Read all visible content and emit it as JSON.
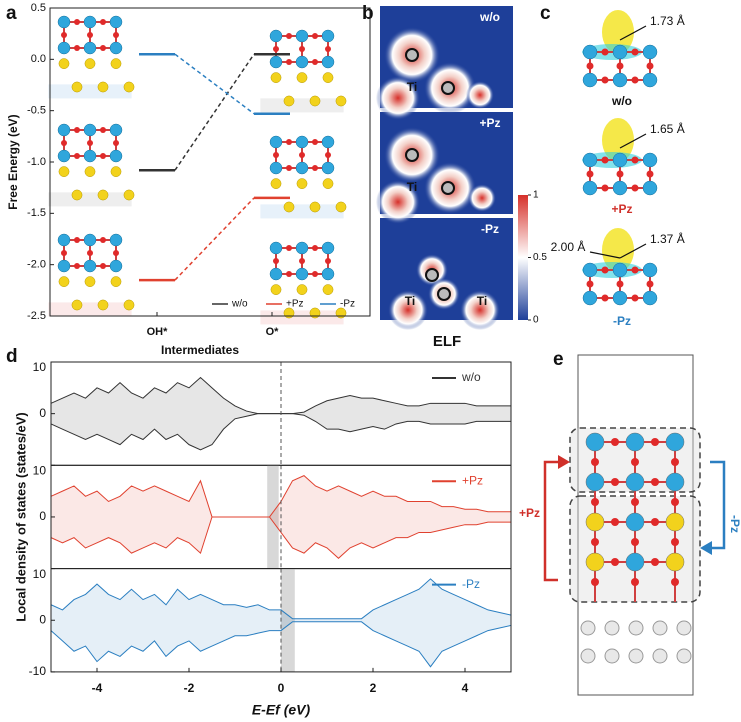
{
  "panel_labels": [
    "a",
    "b",
    "c",
    "d",
    "e"
  ],
  "chart_data": [
    {
      "type": "line",
      "categories": [
        "OH*",
        "O*"
      ],
      "xlabel": "Intermediates",
      "ylabel": "Free Energy (eV)",
      "ylim": [
        -2.5,
        0.5
      ],
      "yticks": [
        -2.5,
        {
          "value": -2,
          "label": "-2.0"
        },
        -1.5,
        {
          "value": -1,
          "label": "-1.0"
        },
        -0.5,
        {
          "value": 0,
          "label": "0.0"
        },
        0.5
      ],
      "series": [
        {
          "name": "w/o",
          "color": "#333333",
          "values": [
            -1.08,
            0.05
          ]
        },
        {
          "name": "+Pz",
          "color": "#e0412f",
          "values": [
            -2.15,
            -1.35
          ]
        },
        {
          "name": "-Pz",
          "color": "#2b7fc1",
          "values": [
            0.05,
            -0.53
          ]
        }
      ],
      "legend": "lower right"
    },
    {
      "type": "area",
      "xlim": [
        -5,
        5
      ],
      "ylim": [
        -10,
        10
      ],
      "yticks": [
        10,
        0
      ],
      "reference_line": 0,
      "legend": "upper right",
      "x": [
        -5,
        -4.75,
        -4.5,
        -4.25,
        -4,
        -3.75,
        -3.5,
        -3.25,
        -3,
        -2.75,
        -2.5,
        -2.25,
        -2,
        -1.75,
        -1.5,
        -1.25,
        -1,
        -0.75,
        -0.5,
        -0.25,
        0,
        0.25,
        0.5,
        0.75,
        1,
        1.25,
        1.5,
        1.75,
        2,
        2.25,
        2.5,
        2.75,
        3,
        3.25,
        3.5,
        3.75,
        4,
        4.25,
        4.5,
        4.75,
        5
      ],
      "series": [
        {
          "name": "w/o",
          "color": "#333333",
          "values": [
            2,
            3,
            4,
            3,
            5,
            4,
            6,
            4,
            3,
            5,
            4,
            6,
            5,
            7,
            5,
            3,
            1.5,
            0.5,
            0,
            0,
            0,
            0,
            0.3,
            1.5,
            2.5,
            3,
            3.5,
            3,
            3,
            2.5,
            2,
            1.5,
            1.5,
            2,
            2,
            2,
            2,
            1.5,
            1.5,
            1.5,
            1.5
          ]
        },
        {
          "color": "#333333",
          "values": [
            -2,
            -3,
            -4,
            -5,
            -4,
            -5,
            -6,
            -4,
            -5,
            -3,
            -5,
            -4,
            -6,
            -7,
            -6,
            -3,
            -1,
            -0.5,
            0,
            0,
            0,
            0,
            -0.3,
            -1.5,
            -3,
            -3,
            -3.5,
            -3,
            -2.5,
            -3,
            -2,
            -1.5,
            -1.5,
            -2,
            -2,
            -2,
            -2,
            -1.5,
            -1.5,
            -1.5,
            -1.5
          ]
        }
      ]
    },
    {
      "type": "area",
      "xlim": [
        -5,
        5
      ],
      "ylim": [
        -10,
        10
      ],
      "yticks": [
        10,
        0
      ],
      "reference_line": 0,
      "legend": "upper right",
      "shade": [
        -0.3,
        -0.05
      ],
      "x": [
        -5,
        -4.75,
        -4.5,
        -4.25,
        -4,
        -3.75,
        -3.5,
        -3.25,
        -3,
        -2.75,
        -2.5,
        -2.25,
        -2,
        -1.75,
        -1.5,
        -1.25,
        -1,
        -0.75,
        -0.5,
        -0.25,
        0,
        0.25,
        0.5,
        0.75,
        1,
        1.25,
        1.5,
        1.75,
        2,
        2.25,
        2.5,
        2.75,
        3,
        3.25,
        3.5,
        3.75,
        4,
        4.25,
        4.5,
        4.75,
        5
      ],
      "series": [
        {
          "name": "+Pz",
          "color": "#e0412f",
          "values": [
            4,
            5,
            6,
            4,
            5,
            3,
            4,
            6,
            5,
            6,
            5,
            4,
            3,
            7,
            0,
            0,
            0,
            0,
            0,
            0,
            3,
            7,
            8,
            6,
            5,
            6,
            5,
            4,
            5,
            4,
            4,
            3,
            3,
            3,
            2,
            2,
            1.5,
            1.5,
            1,
            1,
            1
          ]
        },
        {
          "color": "#e0412f",
          "values": [
            -4,
            -5,
            -4,
            -6,
            -5,
            -4,
            -5,
            -7,
            -6,
            -5,
            -6,
            -4,
            -5,
            -7,
            0,
            0,
            0,
            0,
            0,
            0,
            -3,
            -6,
            -7,
            -5,
            -6,
            -8,
            -6,
            -5,
            -6,
            -5,
            -4,
            -4,
            -3,
            -3,
            -2.5,
            -2,
            -1.5,
            -1.5,
            -1,
            -1,
            -1
          ]
        }
      ]
    },
    {
      "type": "area",
      "xlim": [
        -5,
        5
      ],
      "ylim": [
        -10,
        10
      ],
      "yticks": [
        10,
        0,
        -10
      ],
      "xticks": [
        -4,
        -2,
        0,
        2,
        4
      ],
      "reference_line": 0,
      "legend": "upper right",
      "shade": [
        0,
        0.3
      ],
      "x": [
        -5,
        -4.75,
        -4.5,
        -4.25,
        -4,
        -3.75,
        -3.5,
        -3.25,
        -3,
        -2.75,
        -2.5,
        -2.25,
        -2,
        -1.75,
        -1.5,
        -1.25,
        -1,
        -0.75,
        -0.5,
        -0.25,
        0,
        0.25,
        0.5,
        0.75,
        1,
        1.25,
        1.5,
        1.75,
        2,
        2.25,
        2.5,
        2.75,
        3,
        3.25,
        3.5,
        3.75,
        4,
        4.25,
        4.5,
        4.75,
        5
      ],
      "series": [
        {
          "name": "-Pz",
          "color": "#2b7fc1",
          "values": [
            3,
            2,
            4,
            5,
            7,
            5,
            4,
            6,
            4,
            5,
            3,
            6,
            4,
            5,
            4,
            3,
            3,
            2.5,
            3,
            2,
            2,
            0.3,
            0.3,
            0.3,
            0.3,
            0.3,
            0.3,
            0.3,
            2,
            3,
            4,
            5,
            6,
            8,
            6,
            5,
            4,
            3,
            2,
            1.5,
            1
          ]
        },
        {
          "color": "#2b7fc1",
          "values": [
            -2,
            -4,
            -6,
            -5,
            -8,
            -6,
            -7,
            -5,
            -6,
            -4,
            -7,
            -5,
            -4,
            -6,
            -5,
            -4,
            -3,
            -3,
            -2.5,
            -2,
            -2,
            -0.3,
            -0.3,
            -0.3,
            -0.3,
            -0.3,
            -0.3,
            -0.3,
            -2,
            -3,
            -4,
            -5,
            -6,
            -9,
            -6,
            -5,
            -4,
            -3,
            -2,
            -1.5,
            -1
          ]
        }
      ]
    }
  ],
  "dos_axes": {
    "ylabel": "Local density of states (states/eV)",
    "xlabel": "E-Ef (eV)"
  },
  "elf": {
    "labels": [
      "w/o",
      "+Pz",
      "-Pz"
    ],
    "atom_label": "Ti",
    "title": "ELF",
    "colorbar_ticks": [
      0,
      0.5,
      1
    ]
  },
  "charge_density": {
    "items": [
      {
        "bonds": [
          "1.73 Å"
        ],
        "label": "w/o"
      },
      {
        "bonds": [
          "1.65 Å"
        ],
        "label": "+Pz"
      },
      {
        "bonds": [
          "2.00 Å",
          "1.37 Å"
        ],
        "label": "-Pz"
      }
    ]
  },
  "model": {
    "left_label": "+Pz",
    "right_label": "-Pz"
  }
}
